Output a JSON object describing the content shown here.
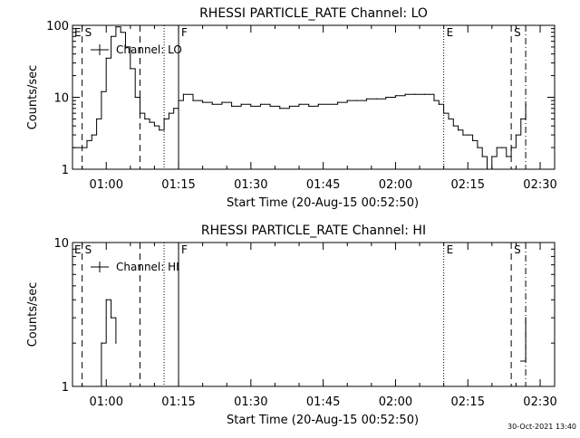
{
  "footer_timestamp": "30-Oct-2021 13:40",
  "chart_data": [
    {
      "type": "line",
      "title": "RHESSI PARTICLE_RATE Channel: LO",
      "xlabel": "Start Time (20-Aug-15 00:52:50)",
      "ylabel": "Counts/sec",
      "xlim": [
        "00:53",
        "02:33"
      ],
      "ylim": [
        1,
        100
      ],
      "yscale": "log",
      "grid": false,
      "legend": {
        "position": "top-left",
        "entries": [
          "Channel: LO"
        ]
      },
      "xticks": [
        "01:00",
        "01:15",
        "01:30",
        "01:45",
        "02:00",
        "02:15",
        "02:30"
      ],
      "yticks": [
        "1",
        "10",
        "100"
      ],
      "markers": [
        {
          "time": "00:55",
          "label": "S",
          "style": "dashed"
        },
        {
          "time": "01:07",
          "label": "",
          "style": "dashed"
        },
        {
          "time": "01:12",
          "label": "",
          "style": "dotted"
        },
        {
          "time": "01:15",
          "label": "F",
          "style": "solid"
        },
        {
          "time": "02:10",
          "label": "E",
          "style": "dotted"
        },
        {
          "time": "02:24",
          "label": "S",
          "style": "dashed"
        },
        {
          "time": "02:27",
          "label": "",
          "style": "dashdot"
        }
      ],
      "edge_labels": [
        {
          "label": "E"
        }
      ],
      "series": [
        {
          "name": "Channel: LO",
          "x": [
            "00:53",
            "00:55",
            "00:56",
            "00:57",
            "00:58",
            "00:59",
            "01:00",
            "01:01",
            "01:02",
            "01:03",
            "01:04",
            "01:05",
            "01:06",
            "01:07",
            "01:08",
            "01:09",
            "01:10",
            "01:11",
            "01:12",
            "01:13",
            "01:14",
            "01:15",
            "01:16",
            "01:18",
            "01:20",
            "01:22",
            "01:24",
            "01:26",
            "01:28",
            "01:30",
            "01:32",
            "01:34",
            "01:36",
            "01:38",
            "01:40",
            "01:42",
            "01:44",
            "01:46",
            "01:48",
            "01:50",
            "01:52",
            "01:54",
            "01:56",
            "01:58",
            "02:00",
            "02:02",
            "02:04",
            "02:06",
            "02:08",
            "02:09",
            "02:10",
            "02:11",
            "02:12",
            "02:13",
            "02:14",
            "02:15",
            "02:16",
            "02:17",
            "02:18",
            "02:19",
            "02:20",
            "02:21",
            "02:22",
            "02:23",
            "02:24",
            "02:25",
            "02:26",
            "02:27"
          ],
          "values": [
            2,
            2,
            2.5,
            3,
            5,
            12,
            35,
            70,
            95,
            80,
            50,
            25,
            10,
            6,
            5,
            4.5,
            4,
            3.5,
            5,
            6,
            7,
            9,
            11,
            9,
            8.5,
            8,
            8.5,
            7.5,
            8,
            7.5,
            8,
            7.5,
            7,
            7.5,
            8,
            7.5,
            8,
            8,
            8.5,
            9,
            9,
            9.5,
            9.5,
            10,
            10.5,
            11,
            11,
            11,
            9,
            8,
            6,
            5,
            4,
            3.5,
            3,
            3,
            2.5,
            2,
            1.5,
            1,
            1.5,
            2,
            2,
            1.5,
            2,
            3,
            5,
            8
          ]
        }
      ]
    },
    {
      "type": "line",
      "title": "RHESSI PARTICLE_RATE Channel: HI",
      "xlabel": "Start Time (20-Aug-15 00:52:50)",
      "ylabel": "Counts/sec",
      "xlim": [
        "00:53",
        "02:33"
      ],
      "ylim": [
        1,
        10
      ],
      "yscale": "log",
      "grid": false,
      "legend": {
        "position": "top-left",
        "entries": [
          "Channel: HI"
        ]
      },
      "xticks": [
        "01:00",
        "01:15",
        "01:30",
        "01:45",
        "02:00",
        "02:15",
        "02:30"
      ],
      "yticks": [
        "1",
        "10"
      ],
      "markers": [
        {
          "time": "00:55",
          "label": "S",
          "style": "dashed"
        },
        {
          "time": "01:07",
          "label": "",
          "style": "dashed"
        },
        {
          "time": "01:12",
          "label": "",
          "style": "dotted"
        },
        {
          "time": "01:15",
          "label": "F",
          "style": "solid"
        },
        {
          "time": "02:10",
          "label": "E",
          "style": "dotted"
        },
        {
          "time": "02:24",
          "label": "S",
          "style": "dashed"
        },
        {
          "time": "02:27",
          "label": "",
          "style": "dashdot"
        }
      ],
      "edge_labels": [
        {
          "label": "E"
        }
      ],
      "series": [
        {
          "name": "Channel: HI",
          "segments": [
            {
              "x": [
                "00:58",
                "00:59",
                "01:00",
                "01:01",
                "01:02"
              ],
              "values": [
                1,
                2,
                4,
                3,
                2
              ]
            },
            {
              "x": [
                "02:26",
                "02:27"
              ],
              "values": [
                1.5,
                3
              ]
            }
          ]
        }
      ]
    }
  ]
}
